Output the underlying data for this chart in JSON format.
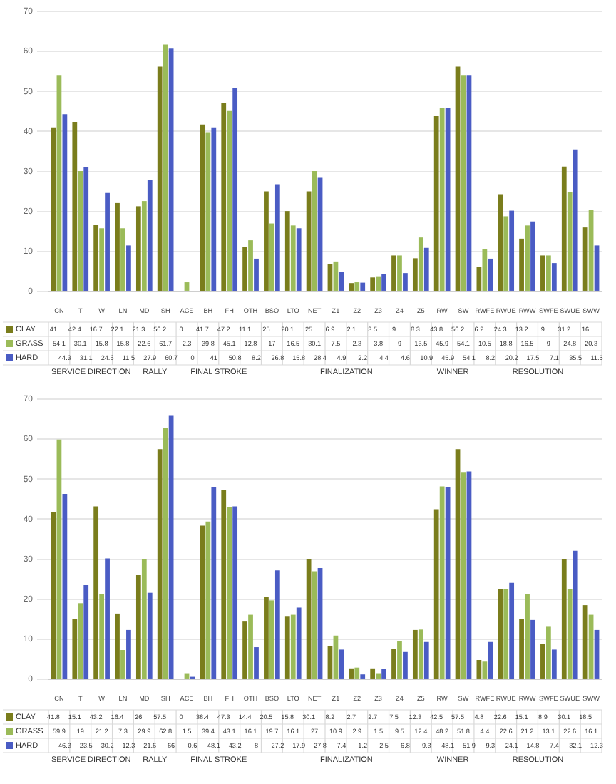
{
  "chart_data": [
    {
      "type": "bar",
      "categories": [
        "CN",
        "T",
        "W",
        "LN",
        "MD",
        "SH",
        "ACE",
        "BH",
        "FH",
        "OTH",
        "BSO",
        "LTO",
        "NET",
        "Z1",
        "Z2",
        "Z3",
        "Z4",
        "Z5",
        "RW",
        "SW",
        "RWFE",
        "RWUE",
        "RWW",
        "SWFE",
        "SWUE",
        "SWW"
      ],
      "series": [
        {
          "name": "CLAY",
          "color": "#7a7d1c",
          "values": [
            41,
            42.4,
            16.7,
            22.1,
            21.3,
            56.2,
            0,
            41.7,
            47.2,
            11.1,
            25,
            20.1,
            25,
            6.9,
            2.1,
            3.5,
            9,
            8.3,
            43.8,
            56.2,
            6.2,
            24.3,
            13.2,
            9,
            31.2,
            16
          ]
        },
        {
          "name": "GRASS",
          "color": "#9bbb59",
          "values": [
            54.1,
            30.1,
            15.8,
            15.8,
            22.6,
            61.7,
            2.3,
            39.8,
            45.1,
            12.8,
            17,
            16.5,
            30.1,
            7.5,
            2.3,
            3.8,
            9,
            13.5,
            45.9,
            54.1,
            10.5,
            18.8,
            16.5,
            9,
            24.8,
            20.3
          ]
        },
        {
          "name": "HARD",
          "color": "#4a5cc4",
          "values": [
            44.3,
            31.1,
            24.6,
            11.5,
            27.9,
            60.7,
            0,
            41,
            50.8,
            8.2,
            26.8,
            15.8,
            28.4,
            4.9,
            2.2,
            4.4,
            4.6,
            10.9,
            45.9,
            54.1,
            8.2,
            20.2,
            17.5,
            7.1,
            35.5,
            11.5
          ]
        }
      ],
      "ylim": [
        0,
        70
      ],
      "yticks": [
        0,
        10,
        20,
        30,
        40,
        50,
        60,
        70
      ],
      "grid": "y",
      "legend": "bottom",
      "data_labels": true,
      "annotations": [
        "SERVICE DIRECTION",
        "RALLY",
        "FINAL STROKE",
        "FINALIZATION",
        "WINNER",
        "RESOLUTION"
      ]
    },
    {
      "type": "bar",
      "categories": [
        "CN",
        "T",
        "W",
        "LN",
        "MD",
        "SH",
        "ACE",
        "BH",
        "FH",
        "OTH",
        "BSO",
        "LTO",
        "NET",
        "Z1",
        "Z2",
        "Z3",
        "Z4",
        "Z5",
        "RW",
        "SW",
        "RWFE",
        "RWUE",
        "RWW",
        "SWFE",
        "SWUE",
        "SWW"
      ],
      "series": [
        {
          "name": "CLAY",
          "color": "#7a7d1c",
          "values": [
            41.8,
            15.1,
            43.2,
            16.4,
            26,
            57.5,
            0,
            38.4,
            47.3,
            14.4,
            20.5,
            15.8,
            30.1,
            8.2,
            2.7,
            2.7,
            7.5,
            12.3,
            42.5,
            57.5,
            4.8,
            22.6,
            15.1,
            8.9,
            30.1,
            18.5
          ]
        },
        {
          "name": "GRASS",
          "color": "#9bbb59",
          "values": [
            59.9,
            19,
            21.2,
            7.3,
            29.9,
            62.8,
            1.5,
            39.4,
            43.1,
            16.1,
            19.7,
            16.1,
            27,
            10.9,
            2.9,
            1.5,
            9.5,
            12.4,
            48.2,
            51.8,
            4.4,
            22.6,
            21.2,
            13.1,
            22.6,
            16.1
          ]
        },
        {
          "name": "HARD",
          "color": "#4a5cc4",
          "values": [
            46.3,
            23.5,
            30.2,
            12.3,
            21.6,
            66,
            0.6,
            48.1,
            43.2,
            8,
            27.2,
            17.9,
            27.8,
            7.4,
            1.2,
            2.5,
            6.8,
            9.3,
            48.1,
            51.9,
            9.3,
            24.1,
            14.8,
            7.4,
            32.1,
            12.3
          ]
        }
      ],
      "ylim": [
        0,
        70
      ],
      "yticks": [
        0,
        10,
        20,
        30,
        40,
        50,
        60,
        70
      ],
      "grid": "y",
      "legend": "bottom",
      "data_labels": true,
      "annotations": [
        "SERVICE DIRECTION",
        "RALLY",
        "FINAL STROKE",
        "FINALIZATION",
        "WINNER",
        "RESOLUTION"
      ]
    }
  ]
}
